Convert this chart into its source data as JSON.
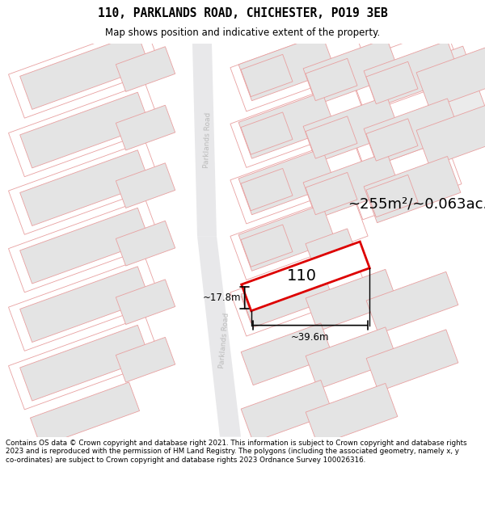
{
  "title_line1": "110, PARKLANDS ROAD, CHICHESTER, PO19 3EB",
  "title_line2": "Map shows position and indicative extent of the property.",
  "footer_text": "Contains OS data © Crown copyright and database right 2021. This information is subject to Crown copyright and database rights 2023 and is reproduced with the permission of HM Land Registry. The polygons (including the associated geometry, namely x, y co-ordinates) are subject to Crown copyright and database rights 2023 Ordnance Survey 100026316.",
  "area_label": "~255m²/~0.063ac.",
  "width_label": "~39.6m",
  "height_label": "~17.8m",
  "house_number": "110",
  "road_fill": "#e8e8ea",
  "building_fill": "#e4e4e4",
  "building_edge": "#e8a0a0",
  "plot_edge": "#d0c0c0",
  "highlight_edge": "#dd0000",
  "highlight_fill": "#ffffff",
  "title_font": "DejaVu Sans",
  "map_bg": "#ffffff"
}
